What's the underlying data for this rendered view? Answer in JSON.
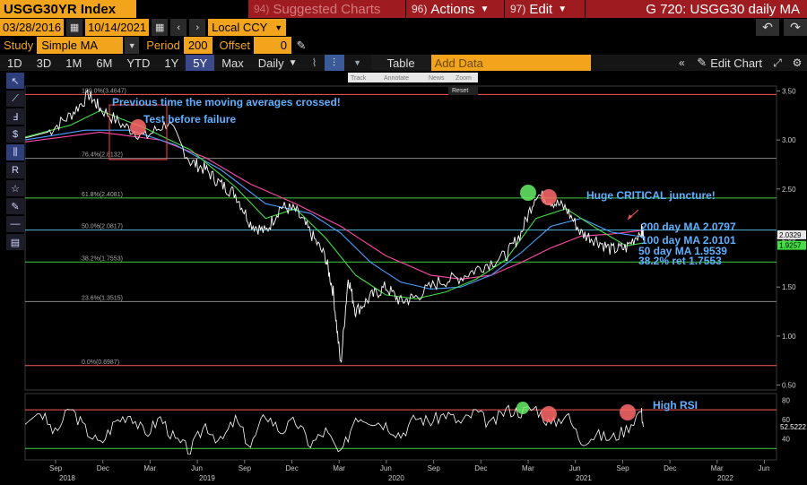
{
  "header": {
    "ticker": "USGG30YR Index",
    "menu_suggested": "Suggested Charts",
    "menu_suggested_num": "94)",
    "menu_actions": "Actions",
    "menu_actions_num": "96)",
    "menu_edit": "Edit",
    "menu_edit_num": "97)",
    "title": "G 720: USGG30 daily MA"
  },
  "dates": {
    "start": "03/28/2016",
    "end": "10/14/2021",
    "currency": "Local CCY"
  },
  "study": {
    "label": "Study",
    "value": "Simple MA",
    "period_label": "Period",
    "period": "200",
    "offset_label": "Offset",
    "offset": "0"
  },
  "periods": [
    "1D",
    "3D",
    "1M",
    "6M",
    "YTD",
    "1Y",
    "5Y",
    "Max"
  ],
  "active_period": "5Y",
  "frequency": "Daily",
  "toolbar": {
    "table": "Table",
    "add_data_placeholder": "Add Data",
    "edit_chart": "Edit Chart"
  },
  "mini_toolbar": {
    "track": "Track",
    "annotate": "Annotate",
    "news": "News",
    "zoom": "Zoom",
    "reset": "Reset"
  },
  "annotations": {
    "prev_cross": "Previous time the moving averages crossed!",
    "test_failure": "Test before failure",
    "critical": "Huge CRITICAL juncture!",
    "ma200": "200 day MA 2.0797",
    "ma100": "100 day MA 2.0101",
    "ma50": "50 day MA 1.9539",
    "ret382": "38.2% ret 1.7553",
    "high_rsi": "High RSI"
  },
  "colors": {
    "bg": "#000000",
    "price": "#ffffff",
    "ma50": "#44dd44",
    "ma100": "#4aa0ff",
    "ma200": "#ff4aa8",
    "orange": "#f2a41d",
    "annotation": "#5fb0ff",
    "marker_red": "#ff6a6a",
    "marker_green": "#66ee66"
  },
  "chart_data": {
    "type": "line",
    "title": "",
    "y_ticks": [
      "3.50",
      "3.00",
      "2.50",
      "2.00",
      "1.50",
      "1.00",
      "0.50"
    ],
    "ylim": [
      0.45,
      3.55
    ],
    "price_labels": [
      {
        "value": 2.0329,
        "text": "2.0329",
        "bg": "#e8e8e8"
      },
      {
        "value": 1.9257,
        "text": "1.9257",
        "bg": "#44dd44"
      }
    ],
    "fib_levels": [
      {
        "value": 3.4647,
        "label": "100.0%(3.4647)",
        "color": "#ff5a5a"
      },
      {
        "value": 2.8132,
        "label": "76.4%(2.8132)",
        "color": "#888888"
      },
      {
        "value": 2.4081,
        "label": "61.8%(2.4081)",
        "color": "#44cc44"
      },
      {
        "value": 2.0817,
        "label": "50.0%(2.0817)",
        "color": "#55bbdd"
      },
      {
        "value": 1.7553,
        "label": "38.2%(1.7553)",
        "color": "#44cc44"
      },
      {
        "value": 1.3515,
        "label": "23.6%(1.3515)",
        "color": "#888888"
      },
      {
        "value": 0.6987,
        "label": "0.0%(0.6987)",
        "color": "#ff5a5a"
      }
    ],
    "price": [
      [
        0,
        3.02
      ],
      [
        0.03,
        3.08
      ],
      [
        0.06,
        3.25
      ],
      [
        0.085,
        3.46
      ],
      [
        0.1,
        3.32
      ],
      [
        0.13,
        3.15
      ],
      [
        0.16,
        3.03
      ],
      [
        0.19,
        3.18
      ],
      [
        0.22,
        2.78
      ],
      [
        0.24,
        2.7
      ],
      [
        0.26,
        2.55
      ],
      [
        0.28,
        2.45
      ],
      [
        0.3,
        2.15
      ],
      [
        0.32,
        2.06
      ],
      [
        0.34,
        2.32
      ],
      [
        0.36,
        2.28
      ],
      [
        0.38,
        2.05
      ],
      [
        0.4,
        1.8
      ],
      [
        0.41,
        1.45
      ],
      [
        0.42,
        0.7
      ],
      [
        0.43,
        1.6
      ],
      [
        0.44,
        1.25
      ],
      [
        0.46,
        1.4
      ],
      [
        0.48,
        1.5
      ],
      [
        0.5,
        1.35
      ],
      [
        0.52,
        1.4
      ],
      [
        0.55,
        1.55
      ],
      [
        0.58,
        1.6
      ],
      [
        0.61,
        1.72
      ],
      [
        0.64,
        1.82
      ],
      [
        0.66,
        2.05
      ],
      [
        0.68,
        2.45
      ],
      [
        0.7,
        2.38
      ],
      [
        0.72,
        2.3
      ],
      [
        0.74,
        2.05
      ],
      [
        0.76,
        1.98
      ],
      [
        0.78,
        1.88
      ],
      [
        0.8,
        1.9
      ],
      [
        0.82,
        2.08
      ],
      [
        0.823,
        2.03
      ]
    ],
    "ma50": [
      [
        0,
        3.03
      ],
      [
        0.06,
        3.15
      ],
      [
        0.1,
        3.3
      ],
      [
        0.16,
        3.12
      ],
      [
        0.22,
        2.9
      ],
      [
        0.28,
        2.52
      ],
      [
        0.32,
        2.2
      ],
      [
        0.36,
        2.3
      ],
      [
        0.4,
        2.0
      ],
      [
        0.44,
        1.62
      ],
      [
        0.48,
        1.42
      ],
      [
        0.52,
        1.38
      ],
      [
        0.56,
        1.45
      ],
      [
        0.6,
        1.58
      ],
      [
        0.64,
        1.78
      ],
      [
        0.68,
        2.2
      ],
      [
        0.72,
        2.3
      ],
      [
        0.76,
        2.1
      ],
      [
        0.8,
        1.92
      ],
      [
        0.823,
        1.95
      ]
    ],
    "ma100": [
      [
        0,
        3.0
      ],
      [
        0.08,
        3.1
      ],
      [
        0.14,
        3.1
      ],
      [
        0.2,
        2.95
      ],
      [
        0.26,
        2.7
      ],
      [
        0.32,
        2.35
      ],
      [
        0.38,
        2.25
      ],
      [
        0.42,
        2.05
      ],
      [
        0.46,
        1.75
      ],
      [
        0.5,
        1.55
      ],
      [
        0.54,
        1.48
      ],
      [
        0.58,
        1.5
      ],
      [
        0.62,
        1.62
      ],
      [
        0.66,
        1.85
      ],
      [
        0.7,
        2.12
      ],
      [
        0.74,
        2.2
      ],
      [
        0.78,
        2.06
      ],
      [
        0.823,
        2.01
      ]
    ],
    "ma200": [
      [
        0,
        2.98
      ],
      [
        0.1,
        3.08
      ],
      [
        0.18,
        3.0
      ],
      [
        0.24,
        2.82
      ],
      [
        0.3,
        2.55
      ],
      [
        0.36,
        2.35
      ],
      [
        0.42,
        2.12
      ],
      [
        0.48,
        1.82
      ],
      [
        0.54,
        1.62
      ],
      [
        0.58,
        1.58
      ],
      [
        0.62,
        1.62
      ],
      [
        0.66,
        1.75
      ],
      [
        0.7,
        1.9
      ],
      [
        0.74,
        2.02
      ],
      [
        0.78,
        2.04
      ],
      [
        0.823,
        2.08
      ]
    ],
    "rsi": {
      "y_ticks": [
        "80",
        "60",
        "40"
      ],
      "ylim": [
        20,
        85
      ],
      "last_label": "52.5222",
      "upper": 70,
      "lower": 30,
      "values": [
        [
          0,
          55
        ],
        [
          0.02,
          68
        ],
        [
          0.04,
          45
        ],
        [
          0.06,
          72
        ],
        [
          0.08,
          50
        ],
        [
          0.1,
          34
        ],
        [
          0.12,
          58
        ],
        [
          0.14,
          66
        ],
        [
          0.16,
          44
        ],
        [
          0.18,
          62
        ],
        [
          0.2,
          38
        ],
        [
          0.22,
          28
        ],
        [
          0.24,
          55
        ],
        [
          0.26,
          36
        ],
        [
          0.28,
          60
        ],
        [
          0.3,
          32
        ],
        [
          0.32,
          66
        ],
        [
          0.34,
          48
        ],
        [
          0.36,
          58
        ],
        [
          0.38,
          34
        ],
        [
          0.4,
          48
        ],
        [
          0.42,
          22
        ],
        [
          0.44,
          64
        ],
        [
          0.46,
          60
        ],
        [
          0.48,
          55
        ],
        [
          0.5,
          44
        ],
        [
          0.52,
          62
        ],
        [
          0.54,
          58
        ],
        [
          0.56,
          66
        ],
        [
          0.58,
          56
        ],
        [
          0.6,
          68
        ],
        [
          0.62,
          54
        ],
        [
          0.64,
          70
        ],
        [
          0.66,
          68
        ],
        [
          0.68,
          72
        ],
        [
          0.7,
          54
        ],
        [
          0.72,
          66
        ],
        [
          0.74,
          38
        ],
        [
          0.76,
          44
        ],
        [
          0.78,
          40
        ],
        [
          0.8,
          50
        ],
        [
          0.82,
          70
        ],
        [
          0.823,
          52.5
        ]
      ]
    },
    "x_months": [
      "Sep",
      "Dec",
      "Mar",
      "Jun",
      "Sep",
      "Dec",
      "Mar",
      "Jun",
      "Sep",
      "Dec",
      "Mar",
      "Jun",
      "Sep",
      "Dec",
      "Mar",
      "Jun",
      "Sep",
      "Dec",
      "Mar",
      "Jun"
    ],
    "x_years": [
      "2018",
      "2019",
      "2020",
      "2021",
      "2022"
    ]
  }
}
